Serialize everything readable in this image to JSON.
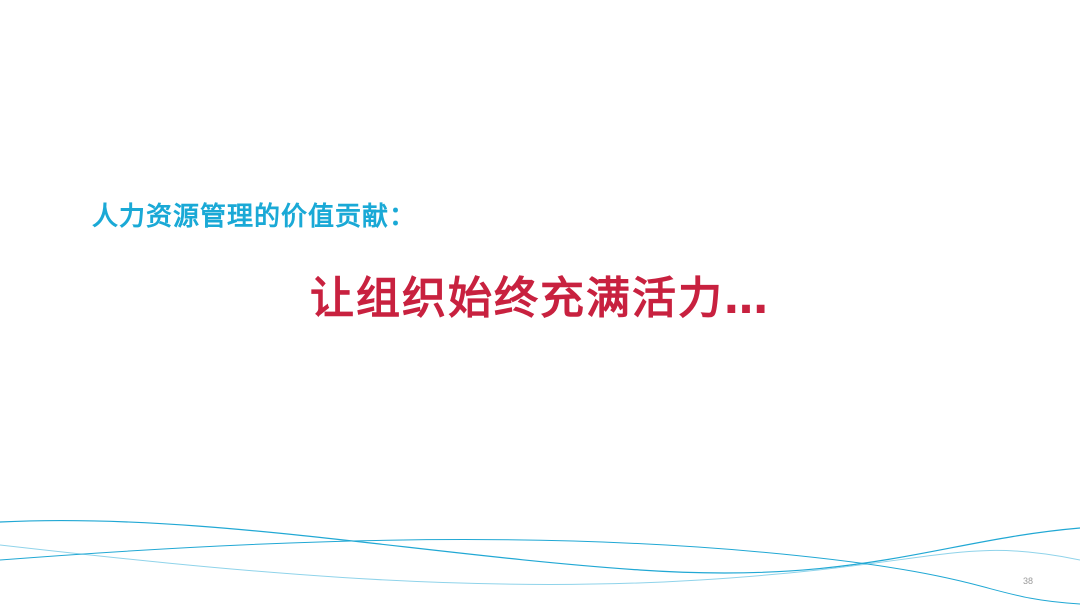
{
  "slide": {
    "subtitle": "人力资源管理的价值贡献：",
    "headline": "让组织始终充满活力…",
    "page_number": "38"
  },
  "colors": {
    "subtitle": "#1aa9d6",
    "headline": "#c8213f",
    "wave_primary": "#21a8d4",
    "wave_secondary": "#8fd3ea"
  }
}
